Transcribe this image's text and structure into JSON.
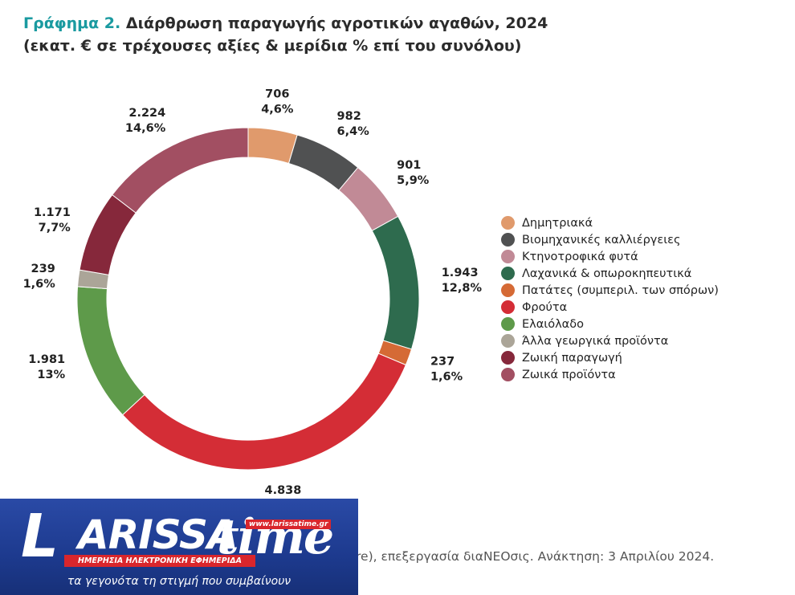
{
  "header": {
    "title_lead": "Γράφημα 2.",
    "title_rest": " Διάρθρωση παραγωγής αγροτικών αγαθών, 2024",
    "subtitle": "(εκατ. € σε τρέχουσες αξίες & μερίδια % επί του συνόλου)"
  },
  "chart_data": {
    "type": "pie",
    "donut": true,
    "title": "Γράφημα 2. Διάρθρωση παραγωγής αγροτικών αγαθών, 2024",
    "subtitle": "(εκατ. € σε τρέχουσες αξίες & μερίδια % επί του συνόλου)",
    "legend_position": "right",
    "slices": [
      {
        "label": "Δημητριακά",
        "value": 706,
        "value_label": "706",
        "share_label": "4,6%",
        "color": "#e09a6c"
      },
      {
        "label": "Βιομηχανικές καλλιέργειες",
        "value": 982,
        "value_label": "982",
        "share_label": "6,4%",
        "color": "#505152"
      },
      {
        "label": "Κτηνοτροφικά φυτά",
        "value": 901,
        "value_label": "901",
        "share_label": "5,9%",
        "color": "#c18a96"
      },
      {
        "label": "Λαχανικά & οπωροκηπευτικά",
        "value": 1943,
        "value_label": "1.943",
        "share_label": "12,8%",
        "color": "#2e6b4e"
      },
      {
        "label": "Πατάτες (συμπεριλ. των σπόρων)",
        "value": 237,
        "value_label": "237",
        "share_label": "1,6%",
        "color": "#d56a35"
      },
      {
        "label": "Φρούτα",
        "value": 4838,
        "value_label": "4.838",
        "share_label": "31,8%",
        "color": "#d42d36"
      },
      {
        "label": "Ελαιόλαδο",
        "value": 1981,
        "value_label": "1.981",
        "share_label": "13%",
        "color": "#5e9a4a"
      },
      {
        "label": "Άλλα γεωργικά προϊόντα",
        "value": 239,
        "value_label": "239",
        "share_label": "1,6%",
        "color": "#aba598"
      },
      {
        "label": "Ζωική παραγωγή",
        "value": 1171,
        "value_label": "1.171",
        "share_label": "7,7%",
        "color": "#86283b"
      },
      {
        "label": "Ζωικά προϊόντα",
        "value": 2224,
        "value_label": "2.224",
        "share_label": "14,6%",
        "color": "#a24f62"
      }
    ]
  },
  "source": {
    "text": "re), επεξεργασία διαΝΕΟσις. Ανάκτηση: 3 Απριλίου 2024."
  },
  "logo": {
    "letter": "L",
    "word": "ARISSA",
    "time": "time",
    "url": "www.larissatime.gr",
    "bar_text": "ΗΜΕΡΗΣΙΑ ΗΛΕΚΤΡΟΝΙΚΗ ΕΦΗΜΕΡΙΔΑ",
    "tagline": "τα γεγονότα τη στιγμή που συμβαίνουν"
  }
}
